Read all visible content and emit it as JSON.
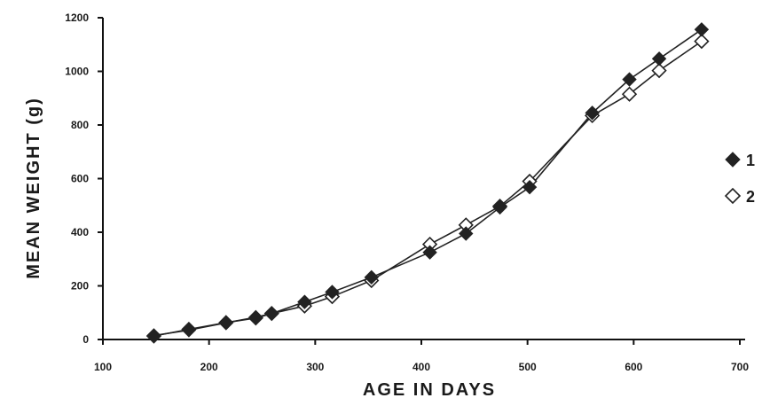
{
  "chart_data": {
    "type": "line",
    "xlabel": "AGE IN DAYS",
    "ylabel": "MEAN WEIGHT  (g)",
    "xlim": [
      100,
      700
    ],
    "ylim": [
      0,
      1200
    ],
    "x_ticks": [
      100,
      200,
      300,
      400,
      500,
      600,
      700
    ],
    "y_ticks": [
      0,
      200,
      400,
      600,
      800,
      1000,
      1200
    ],
    "x_tick_labels": [
      "100",
      "200",
      "300",
      "400",
      "500",
      "600",
      "700"
    ],
    "y_tick_labels": [
      "0",
      "200",
      "400",
      "600",
      "800",
      "1000",
      "1200"
    ],
    "grid": false,
    "legend_position": "right",
    "series": [
      {
        "name": "1",
        "marker": "filled-diamond",
        "color": "#222222",
        "points": [
          {
            "x": 148,
            "y": 15
          },
          {
            "x": 181,
            "y": 35
          },
          {
            "x": 216,
            "y": 62
          },
          {
            "x": 244,
            "y": 83
          },
          {
            "x": 259,
            "y": 97
          },
          {
            "x": 290,
            "y": 140
          },
          {
            "x": 316,
            "y": 177
          },
          {
            "x": 353,
            "y": 232
          },
          {
            "x": 408,
            "y": 325
          },
          {
            "x": 442,
            "y": 395
          },
          {
            "x": 474,
            "y": 493
          },
          {
            "x": 502,
            "y": 568
          },
          {
            "x": 561,
            "y": 845
          },
          {
            "x": 596,
            "y": 970
          },
          {
            "x": 624,
            "y": 1047
          },
          {
            "x": 664,
            "y": 1156
          }
        ]
      },
      {
        "name": "2",
        "marker": "open-diamond",
        "color": "#222222",
        "points": [
          {
            "x": 148,
            "y": 13
          },
          {
            "x": 181,
            "y": 38
          },
          {
            "x": 216,
            "y": 63
          },
          {
            "x": 244,
            "y": 80
          },
          {
            "x": 259,
            "y": 97
          },
          {
            "x": 290,
            "y": 125
          },
          {
            "x": 316,
            "y": 160
          },
          {
            "x": 353,
            "y": 220
          },
          {
            "x": 408,
            "y": 355
          },
          {
            "x": 442,
            "y": 427
          },
          {
            "x": 474,
            "y": 497
          },
          {
            "x": 502,
            "y": 590
          },
          {
            "x": 561,
            "y": 835
          },
          {
            "x": 596,
            "y": 915
          },
          {
            "x": 624,
            "y": 1003
          },
          {
            "x": 664,
            "y": 1112
          }
        ]
      }
    ]
  }
}
